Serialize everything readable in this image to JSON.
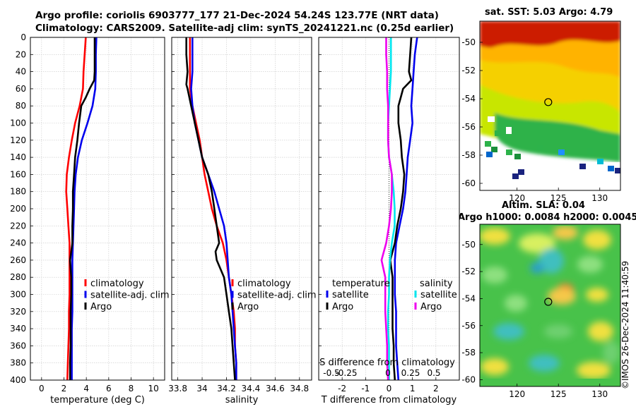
{
  "figure": {
    "title_line1": "Argo profile: coriolis 6903777_177 21-Dec-2024 54.24S 123.77E (NRT data)",
    "title_line2": "Climatology: CARS2009. Satellite-adj clim: synTS_20241221.nc (0.25d earlier)",
    "credit": "©IMOS 26-Dec-2024 11:40:59"
  },
  "colors": {
    "climatology": "#ff0000",
    "satellite": "#0000ee",
    "argo": "#000000",
    "sal_satellite": "#00e5ee",
    "sal_argo": "#ee00ee"
  },
  "chart_data": [
    {
      "type": "line",
      "name": "temperature",
      "xlabel": "temperature (deg C)",
      "ylabel": "",
      "xlim": [
        -1,
        11
      ],
      "ylim": [
        0,
        400
      ],
      "y_inverted": true,
      "xticks": [
        0,
        2,
        4,
        6,
        8,
        10
      ],
      "yticks": [
        0,
        20,
        40,
        60,
        80,
        100,
        120,
        140,
        160,
        180,
        200,
        220,
        240,
        260,
        280,
        300,
        320,
        340,
        360,
        380,
        400
      ],
      "grid": true,
      "legend": {
        "entries": [
          "climatology",
          "satellite-adj. clim",
          "Argo"
        ],
        "position": "lower-right"
      },
      "series": [
        {
          "name": "climatology",
          "color_key": "climatology",
          "depth": [
            0,
            20,
            40,
            60,
            80,
            100,
            120,
            140,
            160,
            180,
            200,
            220,
            240,
            260,
            280,
            300,
            320,
            340,
            360,
            380,
            400
          ],
          "values": [
            3.95,
            3.85,
            3.75,
            3.7,
            3.4,
            3.0,
            2.7,
            2.45,
            2.25,
            2.2,
            2.3,
            2.4,
            2.5,
            2.5,
            2.5,
            2.5,
            2.45,
            2.45,
            2.4,
            2.35,
            2.3
          ]
        },
        {
          "name": "satellite-adj. clim",
          "color_key": "satellite",
          "depth": [
            0,
            20,
            40,
            60,
            80,
            100,
            120,
            140,
            160,
            180,
            200,
            220,
            240,
            260,
            280,
            300,
            320,
            340,
            360,
            380,
            400
          ],
          "values": [
            4.9,
            4.85,
            4.85,
            4.8,
            4.55,
            4.1,
            3.6,
            3.25,
            3.05,
            2.95,
            2.9,
            2.85,
            2.8,
            2.75,
            2.75,
            2.75,
            2.75,
            2.7,
            2.7,
            2.7,
            2.7
          ]
        },
        {
          "name": "Argo",
          "color_key": "argo",
          "depth": [
            0,
            20,
            40,
            50,
            60,
            70,
            80,
            100,
            120,
            140,
            160,
            180,
            200,
            220,
            240,
            260,
            280,
            300,
            320,
            340,
            360,
            380,
            400
          ],
          "values": [
            4.75,
            4.75,
            4.75,
            4.7,
            4.3,
            3.95,
            3.55,
            3.35,
            3.2,
            3.0,
            2.9,
            2.8,
            2.8,
            2.75,
            2.75,
            2.55,
            2.65,
            2.65,
            2.6,
            2.6,
            2.6,
            2.55,
            2.55
          ]
        }
      ]
    },
    {
      "type": "line",
      "name": "salinity",
      "xlabel": "salinity",
      "xlim": [
        33.75,
        34.9
      ],
      "ylim": [
        0,
        400
      ],
      "y_inverted": true,
      "xticks": [
        33.8,
        34,
        34.2,
        34.4,
        34.6,
        34.8
      ],
      "xtick_labels": [
        "33.8",
        "34",
        "34.2",
        "34.4",
        "34.6",
        "34.8"
      ],
      "grid": true,
      "legend": {
        "entries": [
          "climatology",
          "satellite-adj. clim",
          "Argo"
        ],
        "position": "lower-right"
      },
      "series": [
        {
          "name": "climatology",
          "color_key": "climatology",
          "depth": [
            0,
            20,
            40,
            60,
            80,
            100,
            120,
            140,
            160,
            180,
            200,
            220,
            240,
            260,
            280,
            300,
            320,
            340,
            360,
            380,
            400
          ],
          "values": [
            33.9,
            33.9,
            33.9,
            33.9,
            33.92,
            33.95,
            33.98,
            34.0,
            34.02,
            34.05,
            34.08,
            34.12,
            34.17,
            34.2,
            34.22,
            34.24,
            34.26,
            34.27,
            34.27,
            34.28,
            34.28
          ]
        },
        {
          "name": "satellite-adj. clim",
          "color_key": "satellite",
          "depth": [
            0,
            20,
            40,
            60,
            80,
            100,
            120,
            140,
            160,
            180,
            200,
            220,
            240,
            260,
            280,
            300,
            320,
            340,
            360,
            380,
            400
          ],
          "values": [
            33.92,
            33.92,
            33.92,
            33.91,
            33.92,
            33.94,
            33.97,
            34.0,
            34.05,
            34.1,
            34.14,
            34.18,
            34.2,
            34.21,
            34.22,
            34.24,
            34.25,
            34.26,
            34.27,
            34.28,
            34.28
          ]
        },
        {
          "name": "Argo",
          "color_key": "argo",
          "depth": [
            0,
            20,
            40,
            55,
            60,
            80,
            100,
            120,
            140,
            160,
            180,
            200,
            220,
            240,
            250,
            260,
            280,
            300,
            320,
            340,
            360,
            380,
            400
          ],
          "values": [
            33.87,
            33.87,
            33.88,
            33.87,
            33.88,
            33.91,
            33.94,
            33.97,
            34.0,
            34.05,
            34.08,
            34.1,
            34.12,
            34.14,
            34.11,
            34.12,
            34.18,
            34.2,
            34.22,
            34.24,
            34.25,
            34.26,
            34.27
          ]
        }
      ]
    },
    {
      "type": "line",
      "name": "difference",
      "xlabel": "T difference from climatology",
      "top_xlabel": "S difference from climatology",
      "xlim": [
        -3,
        3
      ],
      "ylim": [
        0,
        400
      ],
      "y_inverted": true,
      "xticks": [
        -2,
        -1,
        0,
        1,
        2
      ],
      "top_xticks": [
        "-0.5",
        "-0.25",
        "0",
        "0.25",
        "0.5"
      ],
      "grid": true,
      "legend": {
        "temperature_heading": "temperature",
        "salinity_heading": "salinity",
        "temperature_entries": [
          "satellite",
          "Argo"
        ],
        "salinity_entries": [
          "satellite",
          "Argo"
        ],
        "position": "lower-center"
      },
      "series": [
        {
          "name": "T satellite",
          "color_key": "satellite",
          "depth": [
            0,
            20,
            40,
            60,
            80,
            100,
            120,
            140,
            160,
            180,
            200,
            220,
            240,
            260,
            280,
            300,
            320,
            340,
            360,
            380,
            400
          ],
          "values": [
            1.2,
            1.1,
            1.05,
            1.0,
            0.95,
            1.0,
            0.9,
            0.8,
            0.75,
            0.7,
            0.6,
            0.45,
            0.3,
            0.25,
            0.25,
            0.25,
            0.3,
            0.3,
            0.3,
            0.35,
            0.4
          ]
        },
        {
          "name": "T Argo",
          "color_key": "argo",
          "depth": [
            0,
            20,
            40,
            50,
            60,
            70,
            80,
            100,
            120,
            140,
            160,
            180,
            200,
            220,
            240,
            260,
            280,
            300,
            320,
            340,
            360,
            380,
            400
          ],
          "values": [
            0.95,
            0.9,
            0.85,
            0.95,
            0.6,
            0.5,
            0.4,
            0.4,
            0.5,
            0.55,
            0.65,
            0.6,
            0.5,
            0.35,
            0.25,
            0.05,
            0.15,
            0.15,
            0.15,
            0.15,
            0.2,
            0.2,
            0.25
          ]
        },
        {
          "name": "S satellite",
          "color_key": "sal_satellite",
          "depth": [
            0,
            20,
            40,
            60,
            80,
            100,
            120,
            140,
            160,
            180,
            200,
            220,
            240,
            260,
            280,
            300,
            320,
            340,
            360,
            380,
            400
          ],
          "values": [
            0.02,
            0.02,
            0.02,
            0.01,
            0.0,
            -0.01,
            -0.01,
            0.0,
            0.03,
            0.05,
            0.06,
            0.06,
            0.03,
            0.01,
            0.0,
            0.0,
            -0.01,
            -0.01,
            0.0,
            0.0,
            0.0
          ]
        },
        {
          "name": "S Argo",
          "color_key": "sal_argo",
          "depth": [
            0,
            20,
            40,
            60,
            80,
            100,
            120,
            140,
            160,
            180,
            200,
            220,
            240,
            260,
            280,
            300,
            320,
            340,
            360,
            380,
            400
          ],
          "values": [
            -0.03,
            -0.03,
            -0.02,
            -0.02,
            -0.01,
            -0.01,
            -0.01,
            0.0,
            0.03,
            0.03,
            0.02,
            0.0,
            -0.03,
            -0.08,
            -0.04,
            -0.04,
            -0.04,
            -0.03,
            -0.02,
            -0.02,
            -0.01
          ]
        }
      ]
    },
    {
      "type": "heatmap",
      "name": "sst_map",
      "title": "sat. SST: 5.03 Argo: 4.79",
      "xlim": [
        115.5,
        132.5
      ],
      "ylim": [
        -60.5,
        -48.5
      ],
      "xticks": [
        120,
        125,
        130
      ],
      "yticks": [
        -50,
        -52,
        -54,
        -56,
        -58,
        -60
      ],
      "marker": {
        "lon": 123.77,
        "lat": -54.24
      }
    },
    {
      "type": "heatmap",
      "name": "sla_map",
      "title": "Altim. SLA: 0.04",
      "subtitle": "Argo h1000: 0.0084 h2000: 0.0045",
      "xlim": [
        115.5,
        132.5
      ],
      "ylim": [
        -60.5,
        -48.5
      ],
      "xticks": [
        120,
        125,
        130
      ],
      "yticks": [
        -50,
        -52,
        -54,
        -56,
        -58,
        -60
      ],
      "marker": {
        "lon": 123.77,
        "lat": -54.24
      }
    }
  ]
}
